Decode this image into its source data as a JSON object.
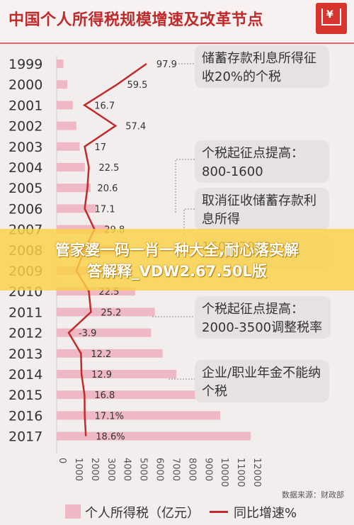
{
  "header": {
    "title": "中国个人所得税规模增速及改革节点",
    "logo_icon": "shopping-cart-yen-icon"
  },
  "notes": [
    "储蓄存款利息所得征收20%的个税",
    "个税起征点提高：800-1600",
    "取消征收储蓄存款利息所得",
    "1600-2000",
    "个税起征点提高：2000-3500调整税率",
    "企业/职业年金不能纳个税"
  ],
  "overlay": {
    "line1": "管家婆一码一肖一种大全,耐心落实解",
    "line2": "答解释_VDW2.67.50L版"
  },
  "source": "数据来源：财政部",
  "legend": {
    "bar_label": "个人所得税（亿元）",
    "line_label": "同比增速%"
  },
  "colors": {
    "bar": "#eeb9c4",
    "line": "#c22b2b",
    "title": "#c12a2a"
  },
  "chart_data": {
    "type": "bar",
    "orientation": "horizontal",
    "categories": [
      "1999",
      "2000",
      "2001",
      "2002",
      "2003",
      "2004",
      "2005",
      "2006",
      "2007",
      "2008",
      "2009",
      "2010",
      "2011",
      "2012",
      "2013",
      "2014",
      "2015",
      "2016",
      "2017"
    ],
    "series": [
      {
        "name": "个人所得税（亿元）",
        "type": "bar",
        "values": [
          414,
          660,
          996,
          1212,
          1418,
          1737,
          2095,
          2454,
          3186,
          3722,
          3949,
          4837,
          6054,
          5820,
          6532,
          7377,
          8618,
          10089,
          11966
        ]
      },
      {
        "name": "同比增速%",
        "type": "line",
        "values": [
          97.9,
          59.5,
          16.7,
          57.4,
          17,
          22.5,
          20.6,
          17.1,
          29.8,
          16.9,
          6.1,
          22.5,
          25.2,
          -3.9,
          12.2,
          12.9,
          16.8,
          17.1,
          18.6
        ]
      }
    ],
    "value_labels": [
      "97.9",
      "59.5",
      "16.7",
      "57.4",
      "17",
      "22.5",
      "20.6",
      "17.1",
      "29.8",
      "",
      "",
      "22.5",
      "25.2",
      "-3.9",
      "12.2",
      "12.9",
      "16.8",
      "17.1%",
      "18.6%"
    ],
    "x_ticks": [
      "0",
      "1000",
      "2000",
      "3000",
      "4000",
      "5000",
      "6000",
      "7000",
      "8000",
      "9000",
      "10000",
      "11000",
      "12000"
    ],
    "xlim": [
      0,
      12000
    ]
  }
}
